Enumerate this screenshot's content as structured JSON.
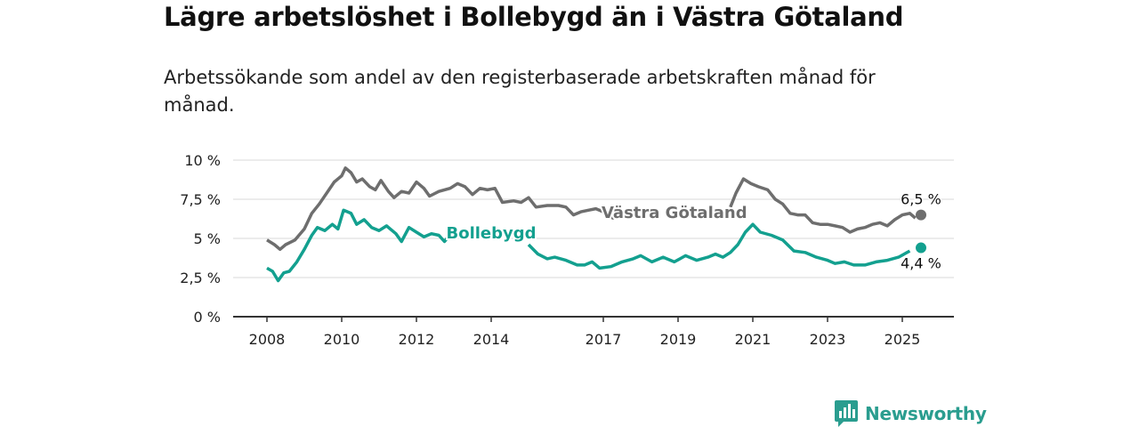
{
  "header": {
    "title": "Lägre arbetslöshet i Bollebygd än i Västra Götaland",
    "subtitle": "Arbetssökande som andel av den registerbaserade arbetskraften månad för månad."
  },
  "brand": {
    "name": "Newsworthy",
    "icon": "newsworthy-bar-chart-icon",
    "color": "#2a9d8f"
  },
  "chart_data": {
    "type": "line",
    "title": "Lägre arbetslöshet i Bollebygd än i Västra Götaland",
    "subtitle": "Arbetssökande som andel av den registerbaserade arbetskraften månad för månad.",
    "xlabel": "",
    "ylabel": "",
    "xlim": [
      2007.6,
      2026.3
    ],
    "ylim": [
      0,
      10
    ],
    "y_ticks": [
      0,
      2.5,
      5,
      7.5,
      10
    ],
    "y_tick_labels": [
      "0 %",
      "2,5 %",
      "5 %",
      "7,5 %",
      "10 %"
    ],
    "x_ticks": [
      2008,
      2010,
      2012,
      2014,
      2017,
      2019,
      2021,
      2023,
      2025
    ],
    "x_tick_labels": [
      "2008",
      "2010",
      "2012",
      "2014",
      "2017",
      "2019",
      "2021",
      "2023",
      "2025"
    ],
    "grid": true,
    "series": [
      {
        "name": "Västra Götaland",
        "color": "#6e6e6e",
        "end_label": "6,5 %",
        "end_value": 6.5,
        "end_x": 2025.5,
        "points": [
          [
            2008.0,
            4.9
          ],
          [
            2008.2,
            4.6
          ],
          [
            2008.35,
            4.3
          ],
          [
            2008.5,
            4.6
          ],
          [
            2008.75,
            4.9
          ],
          [
            2009.0,
            5.6
          ],
          [
            2009.2,
            6.6
          ],
          [
            2009.4,
            7.2
          ],
          [
            2009.6,
            7.9
          ],
          [
            2009.8,
            8.6
          ],
          [
            2010.0,
            9.0
          ],
          [
            2010.1,
            9.5
          ],
          [
            2010.25,
            9.2
          ],
          [
            2010.4,
            8.6
          ],
          [
            2010.55,
            8.8
          ],
          [
            2010.75,
            8.3
          ],
          [
            2010.9,
            8.1
          ],
          [
            2011.05,
            8.7
          ],
          [
            2011.25,
            8.0
          ],
          [
            2011.4,
            7.6
          ],
          [
            2011.6,
            8.0
          ],
          [
            2011.8,
            7.9
          ],
          [
            2012.0,
            8.6
          ],
          [
            2012.2,
            8.2
          ],
          [
            2012.35,
            7.7
          ],
          [
            2012.6,
            8.0
          ],
          [
            2012.9,
            8.2
          ],
          [
            2013.1,
            8.5
          ],
          [
            2013.3,
            8.3
          ],
          [
            2013.5,
            7.8
          ],
          [
            2013.7,
            8.2
          ],
          [
            2013.9,
            8.1
          ],
          [
            2014.1,
            8.2
          ],
          [
            2014.3,
            7.3
          ],
          [
            2014.6,
            7.4
          ],
          [
            2014.8,
            7.3
          ],
          [
            2015.0,
            7.6
          ],
          [
            2015.2,
            7.0
          ],
          [
            2015.5,
            7.1
          ],
          [
            2015.8,
            7.1
          ],
          [
            2016.0,
            7.0
          ],
          [
            2016.2,
            6.5
          ],
          [
            2016.4,
            6.7
          ],
          [
            2016.6,
            6.8
          ],
          [
            2016.8,
            6.9
          ],
          [
            2017.0,
            6.7
          ],
          [
            2017.25,
            6.3
          ],
          [
            2017.5,
            6.5
          ]
        ],
        "points_after_label": [
          [
            2020.4,
            7.0
          ],
          [
            2020.55,
            7.9
          ],
          [
            2020.75,
            8.8
          ],
          [
            2020.95,
            8.5
          ],
          [
            2021.15,
            8.3
          ],
          [
            2021.4,
            8.1
          ],
          [
            2021.6,
            7.5
          ],
          [
            2021.8,
            7.2
          ],
          [
            2022.0,
            6.6
          ],
          [
            2022.2,
            6.5
          ],
          [
            2022.4,
            6.5
          ],
          [
            2022.6,
            6.0
          ],
          [
            2022.8,
            5.9
          ],
          [
            2023.0,
            5.9
          ],
          [
            2023.2,
            5.8
          ],
          [
            2023.4,
            5.7
          ],
          [
            2023.6,
            5.4
          ],
          [
            2023.8,
            5.6
          ],
          [
            2024.0,
            5.7
          ],
          [
            2024.2,
            5.9
          ],
          [
            2024.4,
            6.0
          ],
          [
            2024.6,
            5.8
          ],
          [
            2024.8,
            6.2
          ],
          [
            2025.0,
            6.5
          ],
          [
            2025.2,
            6.6
          ],
          [
            2025.35,
            6.3
          ]
        ],
        "label": "Västra Götaland"
      },
      {
        "name": "Bollebygd",
        "color": "#13a08f",
        "end_label": "4,4 %",
        "end_value": 4.4,
        "end_x": 2025.5,
        "points": [
          [
            2008.0,
            3.1
          ],
          [
            2008.15,
            2.9
          ],
          [
            2008.3,
            2.3
          ],
          [
            2008.45,
            2.8
          ],
          [
            2008.6,
            2.9
          ],
          [
            2008.8,
            3.5
          ],
          [
            2009.0,
            4.3
          ],
          [
            2009.2,
            5.2
          ],
          [
            2009.35,
            5.7
          ],
          [
            2009.55,
            5.5
          ],
          [
            2009.75,
            5.9
          ],
          [
            2009.9,
            5.6
          ],
          [
            2010.05,
            6.8
          ],
          [
            2010.25,
            6.6
          ],
          [
            2010.4,
            5.9
          ],
          [
            2010.6,
            6.2
          ],
          [
            2010.8,
            5.7
          ],
          [
            2011.0,
            5.5
          ],
          [
            2011.2,
            5.8
          ],
          [
            2011.45,
            5.3
          ],
          [
            2011.6,
            4.8
          ],
          [
            2011.8,
            5.7
          ],
          [
            2012.0,
            5.4
          ],
          [
            2012.2,
            5.1
          ],
          [
            2012.4,
            5.3
          ],
          [
            2012.6,
            5.2
          ],
          [
            2012.75,
            4.8
          ],
          [
            2012.95,
            5.4
          ]
        ],
        "points_after_label": [
          [
            2015.0,
            4.6
          ],
          [
            2015.25,
            4.0
          ],
          [
            2015.5,
            3.7
          ],
          [
            2015.7,
            3.8
          ],
          [
            2016.0,
            3.6
          ],
          [
            2016.3,
            3.3
          ],
          [
            2016.5,
            3.3
          ],
          [
            2016.7,
            3.5
          ],
          [
            2016.9,
            3.1
          ],
          [
            2017.2,
            3.2
          ],
          [
            2017.5,
            3.5
          ],
          [
            2017.8,
            3.7
          ],
          [
            2018.0,
            3.9
          ],
          [
            2018.3,
            3.5
          ],
          [
            2018.6,
            3.8
          ],
          [
            2018.9,
            3.5
          ],
          [
            2019.2,
            3.9
          ],
          [
            2019.5,
            3.6
          ],
          [
            2019.8,
            3.8
          ],
          [
            2020.0,
            4.0
          ],
          [
            2020.2,
            3.8
          ],
          [
            2020.4,
            4.1
          ],
          [
            2020.6,
            4.6
          ],
          [
            2020.8,
            5.4
          ],
          [
            2021.0,
            5.9
          ],
          [
            2021.2,
            5.4
          ],
          [
            2021.5,
            5.2
          ],
          [
            2021.8,
            4.9
          ],
          [
            2022.1,
            4.2
          ],
          [
            2022.4,
            4.1
          ],
          [
            2022.7,
            3.8
          ],
          [
            2023.0,
            3.6
          ],
          [
            2023.2,
            3.4
          ],
          [
            2023.45,
            3.5
          ],
          [
            2023.7,
            3.3
          ],
          [
            2024.0,
            3.3
          ],
          [
            2024.3,
            3.5
          ],
          [
            2024.6,
            3.6
          ],
          [
            2024.9,
            3.8
          ],
          [
            2025.2,
            4.2
          ]
        ],
        "label": "Bollebygd"
      }
    ],
    "legend": "inline labels"
  }
}
